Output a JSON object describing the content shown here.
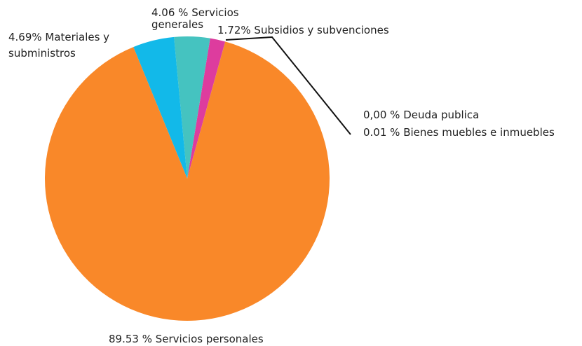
{
  "chart_data": {
    "type": "pie",
    "values": [
      89.53,
      4.69,
      4.06,
      1.72,
      0.0,
      0.01
    ],
    "value_labels": [
      "89.53 % Servicios personales",
      "4.69% Materiales y subministros",
      "4.06 % Servicios generales",
      "1.72% Subsidios y subvenciones",
      "0,00 % Deuda publica",
      "0.01 % Bienes muebles e inmuebles"
    ],
    "colors": [
      "#f98829",
      "#12b9e9",
      "#45c3c0",
      "#dd3c9e",
      "#222222",
      "#222222"
    ]
  }
}
